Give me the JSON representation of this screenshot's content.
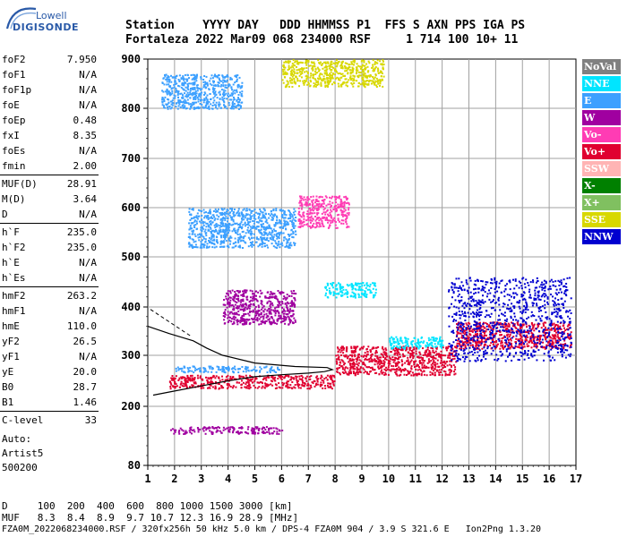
{
  "logo": {
    "line1": "Lowell",
    "line2": "DIGISONDE"
  },
  "header": {
    "line1": "Station    YYYY DAY   DDD HHMMSS P1  FFS S AXN PPS IGA PS",
    "line2": "Fortaleza 2022 Mar09 068 234000 RSF     1 714 100 10+ 11"
  },
  "params": [
    {
      "label": "foF2",
      "value": "7.950"
    },
    {
      "label": "foF1",
      "value": "N/A"
    },
    {
      "label": "foF1p",
      "value": "N/A"
    },
    {
      "label": "foE",
      "value": "N/A"
    },
    {
      "label": "foEp",
      "value": "0.48"
    },
    {
      "label": "fxI",
      "value": "8.35"
    },
    {
      "label": "foEs",
      "value": "N/A"
    },
    {
      "label": "fmin",
      "value": "2.00"
    },
    {
      "label": "MUF(D)",
      "value": "28.91"
    },
    {
      "label": "M(D)",
      "value": "3.64"
    },
    {
      "label": "D",
      "value": "N/A"
    },
    {
      "label": "h`F",
      "value": "235.0"
    },
    {
      "label": "h`F2",
      "value": "235.0"
    },
    {
      "label": "h`E",
      "value": "N/A"
    },
    {
      "label": "h`Es",
      "value": "N/A"
    },
    {
      "label": "hmF2",
      "value": "263.2"
    },
    {
      "label": "hmF1",
      "value": "N/A"
    },
    {
      "label": "hmE",
      "value": "110.0"
    },
    {
      "label": "yF2",
      "value": "26.5"
    },
    {
      "label": "yF1",
      "value": "N/A"
    },
    {
      "label": "yE",
      "value": "20.0"
    },
    {
      "label": "B0",
      "value": "28.7"
    },
    {
      "label": "B1",
      "value": "1.46"
    },
    {
      "label": "C-level",
      "value": "33"
    }
  ],
  "auto": {
    "line1": "Auto:",
    "line2": "Artist5",
    "line3": "500200"
  },
  "legend": [
    {
      "label": "NoVal",
      "color": "#808080"
    },
    {
      "label": "NNE",
      "color": "#00e5ff"
    },
    {
      "label": "E",
      "color": "#3ca0ff"
    },
    {
      "label": "W",
      "color": "#a000a0"
    },
    {
      "label": "Vo-",
      "color": "#ff3cb4"
    },
    {
      "label": "Vo+",
      "color": "#e00030"
    },
    {
      "label": "SSW",
      "color": "#ffb4b4"
    },
    {
      "label": "X-",
      "color": "#008000"
    },
    {
      "label": "X+",
      "color": "#80c060"
    },
    {
      "label": "SSE",
      "color": "#d8d800"
    },
    {
      "label": "NNW",
      "color": "#0000d0"
    }
  ],
  "footer": {
    "d_row": "D     100  200  400  600  800 1000 1500 3000 [km]",
    "muf_row": "MUF   8.3  8.4  8.9  9.7 10.7 12.3 16.9 28.9 [MHz]",
    "file_row": "FZA0M_2022068234000.RSF / 320fx256h 50 kHz 5.0 km / DPS-4 FZA0M 904 / 3.9 S 321.6 E   Ion2Png 1.3.20"
  },
  "chart_data": {
    "type": "scatter",
    "x_ticks": [
      "1",
      "2",
      "3",
      "4",
      "5",
      "6",
      "7",
      "8",
      "9",
      "10",
      "11",
      "12",
      "13",
      "14",
      "15",
      "16",
      "17"
    ],
    "y_ticks": [
      "80",
      "200",
      "300",
      "400",
      "500",
      "600",
      "700",
      "800",
      "900"
    ],
    "xlim": [
      1,
      17
    ],
    "y_axis_scale": "ionogram virtual height (non-linear)",
    "grid": true,
    "legend_position": "right",
    "clusters": [
      {
        "name": "E",
        "x": [
          2.0,
          6.0
        ],
        "y": [
          268,
          280
        ]
      },
      {
        "name": "Vo+",
        "x": [
          1.8,
          8.0
        ],
        "y": [
          236,
          262
        ]
      },
      {
        "name": "Vo+",
        "x": [
          8.0,
          12.5
        ],
        "y": [
          262,
          320
        ]
      },
      {
        "name": "NNE",
        "x": [
          10.0,
          12.0
        ],
        "y": [
          315,
          340
        ]
      },
      {
        "name": "Vo+",
        "x": [
          12.5,
          16.8
        ],
        "y": [
          315,
          370
        ]
      },
      {
        "name": "NNW",
        "x": [
          12.2,
          16.8
        ],
        "y": [
          290,
          460
        ]
      },
      {
        "name": "W",
        "x": [
          3.8,
          6.5
        ],
        "y": [
          365,
          435
        ]
      },
      {
        "name": "NNE",
        "x": [
          7.6,
          9.5
        ],
        "y": [
          420,
          450
        ]
      },
      {
        "name": "E",
        "x": [
          2.5,
          6.5
        ],
        "y": [
          520,
          600
        ]
      },
      {
        "name": "Vo-",
        "x": [
          6.6,
          8.5
        ],
        "y": [
          560,
          625
        ]
      },
      {
        "name": "W",
        "x": [
          1.8,
          6.0
        ],
        "y": [
          145,
          160
        ]
      },
      {
        "name": "E",
        "x": [
          1.5,
          4.5
        ],
        "y": [
          800,
          870
        ]
      },
      {
        "name": "SSE",
        "x": [
          6.0,
          9.8
        ],
        "y": [
          845,
          900
        ]
      }
    ],
    "profile_curve": {
      "x": [
        1.2,
        2.0,
        3.0,
        4.0,
        5.0,
        6.0,
        7.0,
        7.6,
        7.9,
        7.7,
        6.5,
        5.0,
        3.8,
        3.2,
        2.7,
        1.8,
        1.0
      ],
      "y": [
        222,
        230,
        240,
        250,
        258,
        262,
        265,
        268,
        272,
        276,
        278,
        285,
        300,
        315,
        330,
        345,
        360
      ]
    }
  }
}
